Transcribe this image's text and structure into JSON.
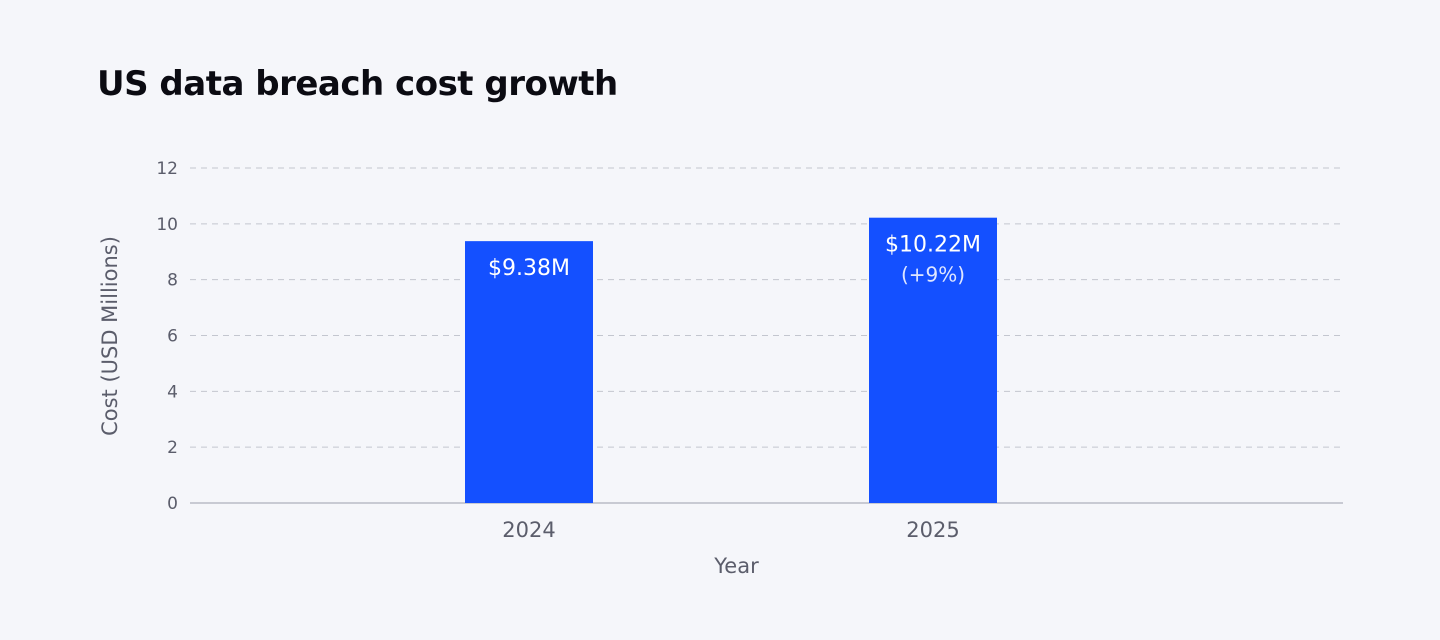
{
  "chart_data": {
    "type": "bar",
    "title": "US data breach cost growth",
    "xlabel": "Year",
    "ylabel": "Cost (USD Millions)",
    "categories": [
      "2024",
      "2025"
    ],
    "values": [
      9.38,
      10.22
    ],
    "data_labels": [
      [
        "$9.38M"
      ],
      [
        "$10.22M",
        "(+9%)"
      ]
    ],
    "ylim": [
      0,
      12
    ],
    "yticks": [
      0,
      2,
      4,
      6,
      8,
      10,
      12
    ],
    "grid": true,
    "legend": "none",
    "colors": {
      "bar": "#1450ff",
      "grid": "#c3c6cf",
      "axis": "#b9bcc6",
      "text": "#5b5d6b",
      "label": "#ffffff"
    }
  }
}
